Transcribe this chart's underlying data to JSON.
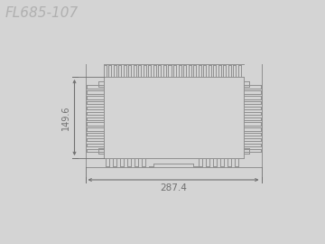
{
  "title": "FL685-107",
  "title_color": "#b0b0b0",
  "background_color": "#d4d4d4",
  "line_color": "#909090",
  "dim_color": "#707070",
  "width_label": "287.4",
  "height_label": "149.6",
  "figsize": [
    3.6,
    2.7
  ],
  "dpi": 100
}
